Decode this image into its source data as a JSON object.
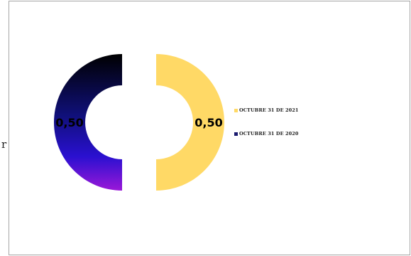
{
  "chart_data": {
    "type": "pie",
    "title": "",
    "categories": [
      "OCTUBRE 31 DE 2021",
      "OCTUBRE 31 DE 2020"
    ],
    "values": [
      0.5,
      0.5
    ],
    "data_labels": [
      "0,50",
      "0,50"
    ],
    "colors": [
      "#ffd966",
      "#1a1a9e"
    ],
    "legend": "right",
    "style": "exploded-doughnut"
  },
  "stray_text": "r"
}
